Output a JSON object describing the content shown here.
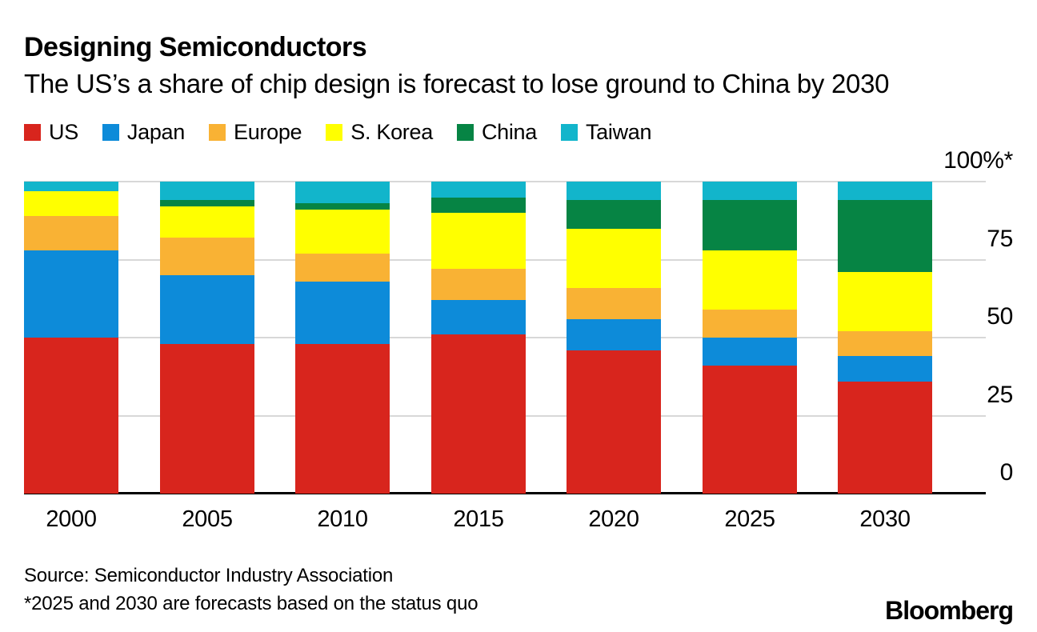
{
  "header": {
    "title": "Designing Semiconductors",
    "subtitle": "The US’s a share of chip design is forecast to lose ground to China by 2030"
  },
  "chart_data": {
    "type": "bar",
    "stacked": true,
    "title": "Designing Semiconductors",
    "subtitle": "The US’s a share of chip design is forecast to lose ground to China by 2030",
    "categories": [
      "2000",
      "2005",
      "2010",
      "2015",
      "2020",
      "2025",
      "2030"
    ],
    "series": [
      {
        "name": "US",
        "color": "#d8251d",
        "values": [
          50,
          48,
          48,
          51,
          46,
          41,
          36
        ]
      },
      {
        "name": "Japan",
        "color": "#0d8bd9",
        "values": [
          28,
          22,
          20,
          11,
          10,
          9,
          8
        ]
      },
      {
        "name": "Europe",
        "color": "#f9b234",
        "values": [
          11,
          12,
          9,
          10,
          10,
          9,
          8
        ]
      },
      {
        "name": "S. Korea",
        "color": "#ffff00",
        "values": [
          8,
          10,
          14,
          18,
          19,
          19,
          19
        ]
      },
      {
        "name": "China",
        "color": "#068444",
        "values": [
          0,
          2,
          2,
          5,
          9,
          16,
          23
        ]
      },
      {
        "name": "Taiwan",
        "color": "#12b5cb",
        "values": [
          3,
          6,
          7,
          5,
          6,
          6,
          6
        ]
      }
    ],
    "y_axis": {
      "ticks": [
        "0",
        "25",
        "50",
        "75",
        "100%*"
      ],
      "tick_values": [
        0,
        25,
        50,
        75,
        100
      ],
      "max": 100
    },
    "grid": true,
    "legend_position": "top",
    "unit": "percent"
  },
  "footer": {
    "source": "Source: Semiconductor Industry Association",
    "note": "*2025 and 2030 are forecasts based on the status quo",
    "brand": "Bloomberg"
  },
  "colors": {
    "us": "#d8251d",
    "japan": "#0d8bd9",
    "europe": "#f9b234",
    "s_korea": "#ffff00",
    "china": "#068444",
    "taiwan": "#12b5cb",
    "gridline": "#d8d8d8",
    "axis": "#000000"
  }
}
